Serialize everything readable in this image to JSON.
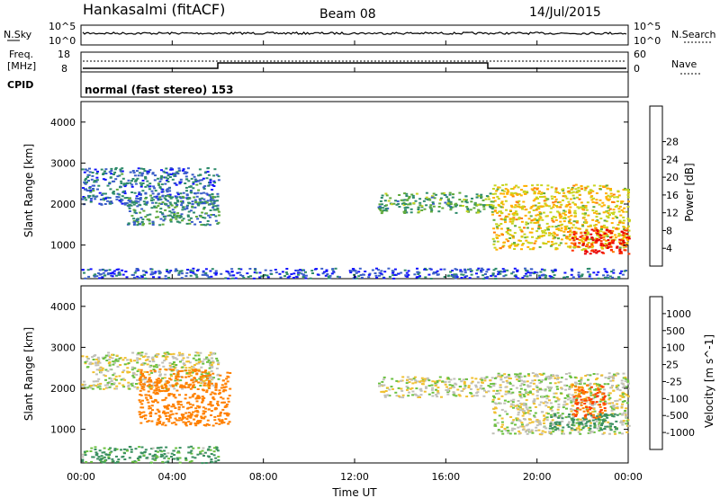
{
  "header": {
    "station": "Hankasalmi (fitACF)",
    "beam": "Beam 08",
    "date": "14/Jul/2015"
  },
  "nsky_panel": {
    "left_label": "N.Sky",
    "right_label": "N.Search",
    "left_ticks": [
      "10^5",
      "10^0"
    ],
    "right_ticks": [
      "10^5",
      "10^0"
    ]
  },
  "freq_panel": {
    "left_label_line1": "Freq.",
    "left_label_line2": "[MHz]",
    "left_ticks": [
      "18",
      "8"
    ],
    "right_ticks": [
      "60",
      "0"
    ],
    "right_label": "Nave",
    "cpid_label": "CPID"
  },
  "cpid_text": "normal (fast stereo) 153",
  "power_colorbar": {
    "label": "Power [dB]",
    "ticks": [
      "4",
      "8",
      "12",
      "16",
      "20",
      "24",
      "28"
    ],
    "colors": [
      "#1010ff",
      "#3a5ec8",
      "#2e8b6a",
      "#5faa3c",
      "#c8d41e",
      "#ffb000",
      "#ff7a00",
      "#ff3000",
      "#e80000"
    ]
  },
  "velocity_colorbar": {
    "label": "Velocity [m s^-1]",
    "ticks": [
      "1000",
      "500",
      "100",
      "25",
      "-25",
      "-100",
      "-500",
      "-1000"
    ],
    "colors": [
      "#2040c0",
      "#3a70c0",
      "#3a9060",
      "#6ac040",
      "#c0c0b8",
      "#f0c030",
      "#ff8000",
      "#ff4000",
      "#ff0000"
    ]
  },
  "chart_data": [
    {
      "type": "heatmap",
      "title": "Power",
      "xlabel": "",
      "ylabel": "Slant Range [km]",
      "xlim": [
        "00:00",
        "24:00"
      ],
      "ylim": [
        180,
        4500
      ],
      "x_ticks": [
        "00:00",
        "04:00",
        "08:00",
        "12:00",
        "16:00",
        "20:00",
        "00:00"
      ],
      "y_ticks": [
        "1000",
        "2000",
        "3000",
        "4000"
      ],
      "scatter_regions": [
        {
          "time_start": 0.0,
          "time_end": 24.0,
          "range_start": 200,
          "range_end": 450,
          "dominant_power_db": 6
        },
        {
          "time_start": 0.0,
          "time_end": 6.0,
          "range_start": 2000,
          "range_end": 2900,
          "dominant_power_db": 8
        },
        {
          "time_start": 2.0,
          "time_end": 6.0,
          "range_start": 1500,
          "range_end": 2200,
          "dominant_power_db": 10
        },
        {
          "time_start": 13.0,
          "time_end": 18.0,
          "range_start": 1800,
          "range_end": 2300,
          "dominant_power_db": 12
        },
        {
          "time_start": 18.0,
          "time_end": 24.0,
          "range_start": 900,
          "range_end": 2500,
          "dominant_power_db": 18
        },
        {
          "time_start": 21.5,
          "time_end": 24.0,
          "range_start": 800,
          "range_end": 1400,
          "dominant_power_db": 28
        }
      ]
    },
    {
      "type": "heatmap",
      "title": "Velocity",
      "xlabel": "Time UT",
      "ylabel": "Slant Range [km]",
      "xlim": [
        "00:00",
        "24:00"
      ],
      "ylim": [
        180,
        4500
      ],
      "x_ticks": [
        "00:00",
        "04:00",
        "08:00",
        "12:00",
        "16:00",
        "20:00",
        "00:00"
      ],
      "y_ticks": [
        "1000",
        "2000",
        "3000",
        "4000"
      ],
      "scatter_regions": [
        {
          "time_start": 0.0,
          "time_end": 6.0,
          "range_start": 200,
          "range_end": 600,
          "dominant_velocity": 80
        },
        {
          "time_start": 0.0,
          "time_end": 6.0,
          "range_start": 2000,
          "range_end": 2900,
          "dominant_velocity": 0
        },
        {
          "time_start": 2.5,
          "time_end": 6.5,
          "range_start": 1100,
          "range_end": 2500,
          "dominant_velocity": -200
        },
        {
          "time_start": 13.0,
          "time_end": 18.0,
          "range_start": 1800,
          "range_end": 2300,
          "dominant_velocity": 0
        },
        {
          "time_start": 18.0,
          "time_end": 24.0,
          "range_start": 900,
          "range_end": 2400,
          "dominant_velocity": 0
        },
        {
          "time_start": 20.5,
          "time_end": 23.5,
          "range_start": 1000,
          "range_end": 1400,
          "dominant_velocity": 150
        },
        {
          "time_start": 21.5,
          "time_end": 23.0,
          "range_start": 1300,
          "range_end": 2100,
          "dominant_velocity": -300
        }
      ]
    }
  ]
}
